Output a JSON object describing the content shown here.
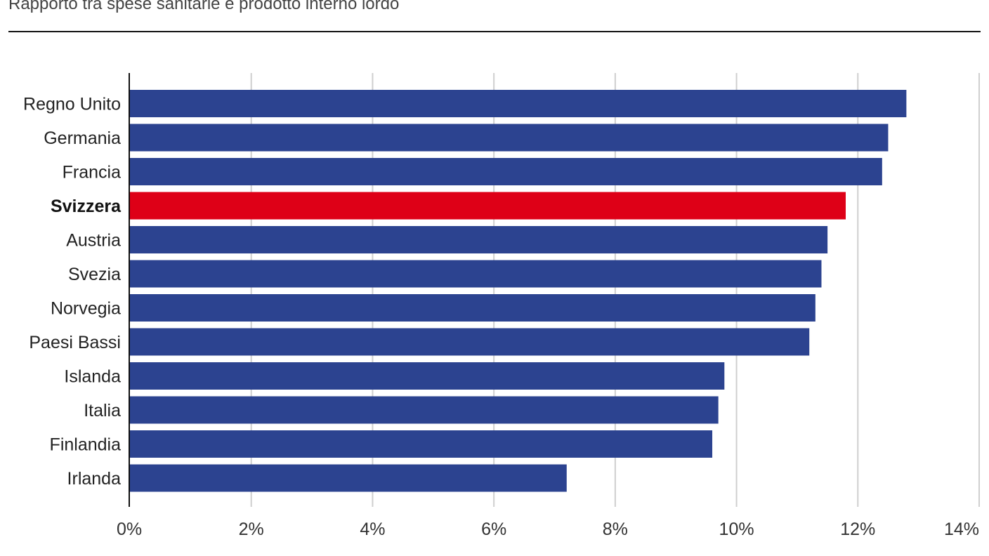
{
  "header": {
    "subtitle": "Rapporto tra spese sanitarie e prodotto interno lordo"
  },
  "colors": {
    "bar": "#2c4390",
    "highlight": "#de0017",
    "grid": "#cfcfcf",
    "axis": "#111111"
  },
  "chart_data": {
    "type": "bar",
    "orientation": "horizontal",
    "categories": [
      "Regno Unito",
      "Germania",
      "Francia",
      "Svizzera",
      "Austria",
      "Svezia",
      "Norvegia",
      "Paesi Bassi",
      "Islanda",
      "Italia",
      "Finlandia",
      "Irlanda"
    ],
    "values": [
      12.8,
      12.5,
      12.4,
      11.8,
      11.5,
      11.4,
      11.3,
      11.2,
      9.8,
      9.7,
      9.6,
      7.2
    ],
    "highlight": "Svizzera",
    "xlim": [
      0,
      14
    ],
    "xticks": [
      0,
      2,
      4,
      6,
      8,
      10,
      12,
      14
    ],
    "xtick_labels": [
      "0%",
      "2%",
      "4%",
      "6%",
      "8%",
      "10%",
      "12%",
      "14%"
    ],
    "grid": true,
    "legend": "none"
  }
}
